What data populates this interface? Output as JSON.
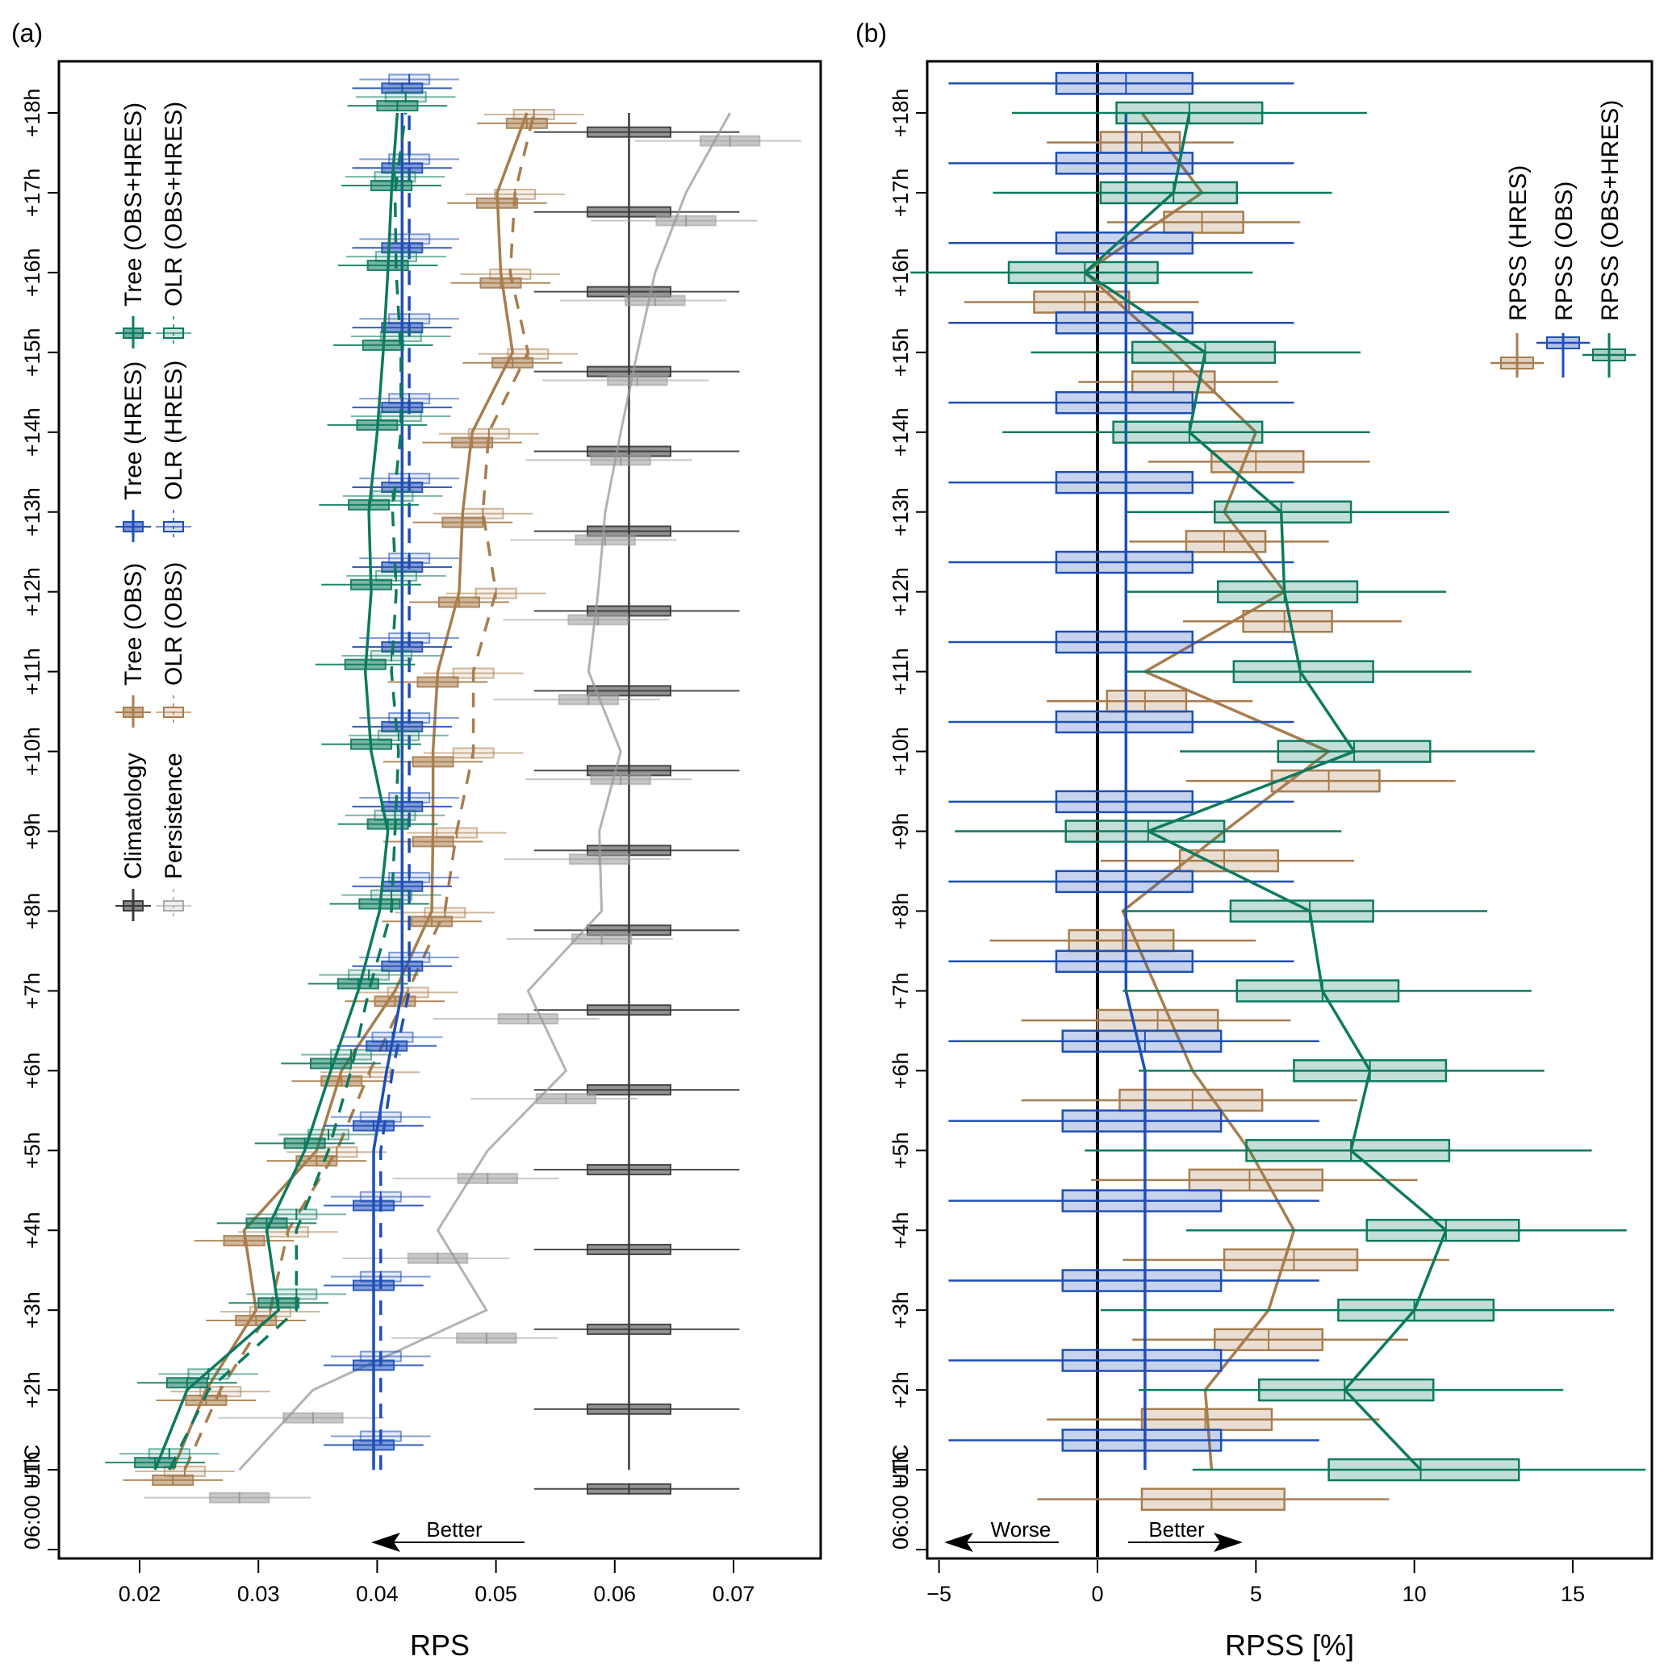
{
  "chart_data": [
    {
      "panel_label": "(a)",
      "type": "line",
      "xlabel": "RPS",
      "ylabel": "",
      "xlim": [
        0.016,
        0.0765
      ],
      "ylim": [
        0,
        18.6
      ],
      "xticks": [
        0.02,
        0.03,
        0.04,
        0.05,
        0.06,
        0.07
      ],
      "xtick_labels": [
        "0.02",
        "0.03",
        "0.04",
        "0.05",
        "0.06",
        "0.07"
      ],
      "yticks": [
        0,
        1,
        2,
        3,
        4,
        5,
        6,
        7,
        8,
        9,
        10,
        11,
        12,
        13,
        14,
        15,
        16,
        17,
        18
      ],
      "ytick_labels": [
        "06:00 UTC",
        "+1h",
        "+2h",
        "+3h",
        "+4h",
        "+5h",
        "+6h",
        "+7h",
        "+8h",
        "+9h",
        "+10h",
        "+11h",
        "+12h",
        "+13h",
        "+14h",
        "+15h",
        "+16h",
        "+17h",
        "+18h"
      ],
      "annotation": "Better",
      "annotation_direction": "left",
      "grid": false,
      "legend_placement": "top-left",
      "legend": [
        {
          "name": "Climatology",
          "color": "#3a3a3a",
          "style": "solid"
        },
        {
          "name": "Persistence",
          "color": "#aaaaaa",
          "style": "solid"
        },
        {
          "name": "Tree (OBS)",
          "color": "#a87d4e",
          "style": "solid"
        },
        {
          "name": "OLR (OBS)",
          "color": "#a87d4e",
          "style": "dashed"
        },
        {
          "name": "Tree (HRES)",
          "color": "#1f4fb5",
          "style": "solid"
        },
        {
          "name": "OLR (HRES)",
          "color": "#1f4fb5",
          "style": "dashed"
        },
        {
          "name": "Tree (OBS+HRES)",
          "color": "#0d7a5f",
          "style": "solid"
        },
        {
          "name": "OLR (OBS+HRES)",
          "color": "#0d7a5f",
          "style": "dashed"
        }
      ],
      "hours": [
        1,
        2,
        3,
        4,
        5,
        6,
        7,
        8,
        9,
        10,
        11,
        12,
        13,
        14,
        15,
        16,
        17,
        18
      ],
      "series": [
        {
          "name": "Climatology",
          "values": [
            0.0612,
            0.0612,
            0.0612,
            0.0612,
            0.0612,
            0.0612,
            0.0612,
            0.0612,
            0.0612,
            0.0612,
            0.0612,
            0.0612,
            0.0612,
            0.0612,
            0.0612,
            0.0612,
            0.0612,
            0.0612
          ],
          "box_halfwidth": 0.0035,
          "whisker": [
            0.0532,
            0.0705
          ]
        },
        {
          "name": "Persistence",
          "values": [
            0.0284,
            0.0346,
            0.0492,
            0.0451,
            0.0493,
            0.0559,
            0.0527,
            0.0589,
            0.0587,
            0.0605,
            0.0578,
            0.0586,
            0.0592,
            0.0605,
            0.0619,
            0.0634,
            0.066,
            0.0697
          ]
        },
        {
          "name": "Tree (OBS)",
          "values": [
            0.0228,
            0.0256,
            0.0298,
            0.0288,
            0.0349,
            0.037,
            0.0415,
            0.0446,
            0.0447,
            0.0447,
            0.0451,
            0.0469,
            0.0472,
            0.048,
            0.0514,
            0.0504,
            0.0501,
            0.0526
          ]
        },
        {
          "name": "OLR (OBS)",
          "values": [
            0.0238,
            0.0268,
            0.031,
            0.0325,
            0.0366,
            0.0394,
            0.0426,
            0.0457,
            0.0467,
            0.0481,
            0.0481,
            0.05,
            0.0489,
            0.0494,
            0.0527,
            0.0512,
            0.0516,
            0.0532
          ]
        },
        {
          "name": "Tree (HRES)",
          "values": [
            0.0397,
            0.0397,
            0.0397,
            0.0397,
            0.0397,
            0.0408,
            0.0421,
            0.0421,
            0.0421,
            0.0421,
            0.0421,
            0.0421,
            0.0421,
            0.0421,
            0.0421,
            0.0421,
            0.0421,
            0.0421
          ]
        },
        {
          "name": "OLR (HRES)",
          "values": [
            0.0403,
            0.0403,
            0.0403,
            0.0403,
            0.0403,
            0.0413,
            0.0427,
            0.0427,
            0.0427,
            0.0427,
            0.0427,
            0.0427,
            0.0427,
            0.0427,
            0.0427,
            0.0427,
            0.0427,
            0.0427
          ]
        },
        {
          "name": "Tree (OBS+HRES)",
          "values": [
            0.0213,
            0.024,
            0.0317,
            0.0307,
            0.0339,
            0.0361,
            0.0384,
            0.0402,
            0.0409,
            0.0395,
            0.039,
            0.0395,
            0.0393,
            0.04,
            0.0405,
            0.0409,
            0.0412,
            0.0417
          ]
        },
        {
          "name": "OLR (OBS+HRES)",
          "values": [
            0.0225,
            0.0258,
            0.0332,
            0.0332,
            0.0359,
            0.0378,
            0.0393,
            0.0412,
            0.0415,
            0.0418,
            0.0412,
            0.0416,
            0.0413,
            0.042,
            0.042,
            0.0416,
            0.0415,
            0.0424
          ]
        }
      ]
    },
    {
      "panel_label": "(b)",
      "type": "line",
      "xlabel": "RPSS [%]",
      "ylabel": "",
      "xlim": [
        -5.8,
        17.5
      ],
      "ylim": [
        0,
        18.6
      ],
      "xticks": [
        -5,
        0,
        5,
        10,
        15
      ],
      "xtick_labels": [
        "−5",
        "0",
        "5",
        "10",
        "15"
      ],
      "yticks": [
        0,
        1,
        2,
        3,
        4,
        5,
        6,
        7,
        8,
        9,
        10,
        11,
        12,
        13,
        14,
        15,
        16,
        17,
        18
      ],
      "ytick_labels": [
        "06:00 UTC",
        "+1h",
        "+2h",
        "+3h",
        "+4h",
        "+5h",
        "+6h",
        "+7h",
        "+8h",
        "+9h",
        "+10h",
        "+11h",
        "+12h",
        "+13h",
        "+14h",
        "+15h",
        "+16h",
        "+17h",
        "+18h"
      ],
      "annotations": [
        {
          "text": "Worse",
          "direction": "left"
        },
        {
          "text": "Better",
          "direction": "right"
        }
      ],
      "reference_line": 0,
      "grid": false,
      "legend_placement": "top-right",
      "legend": [
        {
          "name": "RPSS (HRES)",
          "color": "#a87d4e"
        },
        {
          "name": "RPSS (OBS)",
          "color": "#1f4fb5"
        },
        {
          "name": "RPSS (OBS+HRES)",
          "color": "#0d7a5f"
        }
      ],
      "hours": [
        1,
        2,
        3,
        4,
        5,
        6,
        7,
        8,
        9,
        10,
        11,
        12,
        13,
        14,
        15,
        16,
        17,
        18
      ],
      "series": [
        {
          "name": "RPSS (HRES)",
          "values": [
            3.6,
            3.4,
            5.4,
            6.2,
            4.8,
            3.0,
            1.9,
            0.8,
            4.0,
            7.3,
            1.5,
            5.9,
            4.0,
            5.0,
            2.4,
            -0.4,
            3.3,
            1.4
          ],
          "q1": [
            1.4,
            1.4,
            3.7,
            4.0,
            2.9,
            0.7,
            0.0,
            -0.9,
            2.6,
            5.5,
            0.3,
            4.6,
            2.8,
            3.6,
            1.1,
            -2.0,
            2.1,
            0.1
          ],
          "q3": [
            5.9,
            5.5,
            7.1,
            8.2,
            7.1,
            5.2,
            3.8,
            2.4,
            5.7,
            8.9,
            2.8,
            7.4,
            5.3,
            6.5,
            3.7,
            1.0,
            4.6,
            2.6
          ],
          "wlo": [
            -1.9,
            -1.6,
            1.1,
            0.8,
            -0.2,
            -2.4,
            -2.4,
            -3.4,
            0.1,
            2.8,
            -1.6,
            2.7,
            1.0,
            1.6,
            -0.6,
            -4.2,
            0.3,
            -1.6
          ],
          "whi": [
            9.2,
            8.9,
            9.8,
            11.1,
            10.1,
            8.2,
            6.1,
            5.0,
            8.1,
            11.3,
            4.9,
            9.6,
            7.3,
            8.6,
            5.7,
            3.2,
            6.4,
            4.3
          ]
        },
        {
          "name": "RPSS (OBS)",
          "values": [
            1.5,
            1.5,
            1.5,
            1.5,
            1.5,
            1.5,
            0.9,
            0.9,
            0.9,
            0.9,
            0.9,
            0.9,
            0.9,
            0.9,
            0.9,
            0.9,
            0.9,
            0.9
          ],
          "q1": [
            -1.1,
            -1.1,
            -1.1,
            -1.1,
            -1.1,
            -1.1,
            -1.3,
            -1.3,
            -1.3,
            -1.3,
            -1.3,
            -1.3,
            -1.3,
            -1.3,
            -1.3,
            -1.3,
            -1.3,
            -1.3
          ],
          "q3": [
            3.9,
            3.9,
            3.9,
            3.9,
            3.9,
            3.9,
            3.0,
            3.0,
            3.0,
            3.0,
            3.0,
            3.0,
            3.0,
            3.0,
            3.0,
            3.0,
            3.0,
            3.0
          ],
          "wlo": [
            -4.7,
            -4.7,
            -4.7,
            -4.7,
            -4.7,
            -4.7,
            -4.7,
            -4.7,
            -4.7,
            -4.7,
            -4.7,
            -4.7,
            -4.7,
            -4.7,
            -4.7,
            -4.7,
            -4.7,
            -4.7
          ],
          "whi": [
            7.0,
            7.0,
            7.0,
            7.0,
            7.0,
            7.0,
            6.2,
            6.2,
            6.2,
            6.2,
            6.2,
            6.2,
            6.2,
            6.2,
            6.2,
            6.2,
            6.2,
            6.2
          ]
        },
        {
          "name": "RPSS (OBS+HRES)",
          "values": [
            10.2,
            7.8,
            10.0,
            11.0,
            8.0,
            8.6,
            7.1,
            6.7,
            1.6,
            8.1,
            6.4,
            5.9,
            5.8,
            2.9,
            3.4,
            -0.4,
            2.4,
            2.9
          ],
          "q1": [
            7.3,
            5.1,
            7.6,
            8.5,
            4.7,
            6.2,
            4.4,
            4.2,
            -1.0,
            5.7,
            4.3,
            3.8,
            3.7,
            0.5,
            1.1,
            -2.8,
            0.1,
            0.6
          ],
          "q3": [
            13.3,
            10.6,
            12.5,
            13.3,
            11.1,
            11.0,
            9.5,
            8.7,
            4.0,
            10.5,
            8.7,
            8.2,
            8.0,
            5.2,
            5.6,
            1.9,
            4.4,
            5.2
          ],
          "wlo": [
            3.0,
            1.3,
            0.1,
            2.8,
            -0.4,
            1.3,
            0.8,
            0.8,
            -4.5,
            2.6,
            0.9,
            0.9,
            0.9,
            -3.0,
            -2.1,
            -5.9,
            -3.3,
            -2.7
          ],
          "whi": [
            17.3,
            14.7,
            16.3,
            16.7,
            15.6,
            14.1,
            13.7,
            12.3,
            7.7,
            13.8,
            11.8,
            11.0,
            11.1,
            8.6,
            8.3,
            4.9,
            7.4,
            8.5
          ]
        }
      ]
    }
  ]
}
